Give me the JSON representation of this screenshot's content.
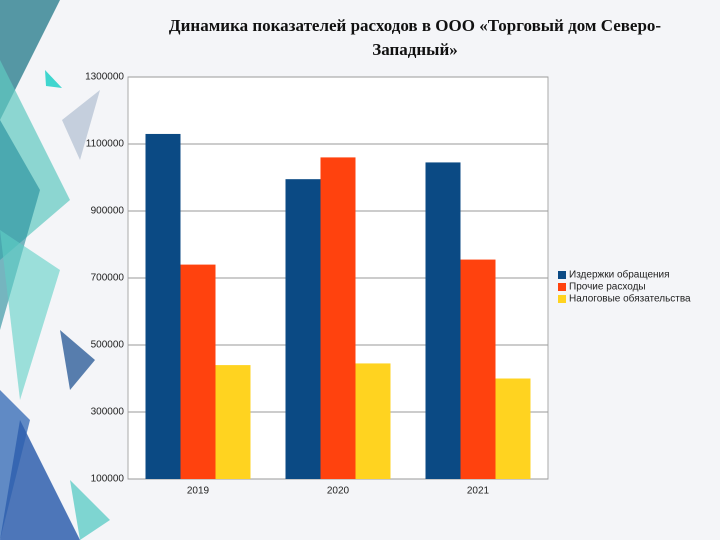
{
  "chart_data": {
    "type": "bar",
    "title": "Динамика показателей расходов в ООО «Торговый дом Северо-Западный»",
    "categories": [
      "2019",
      "2020",
      "2021"
    ],
    "series": [
      {
        "name": "Издержки обращения",
        "color": "#0b4a84",
        "values": [
          1130000,
          995000,
          1045000
        ]
      },
      {
        "name": "Прочие расходы",
        "color": "#ff420e",
        "values": [
          740000,
          1060000,
          755000
        ]
      },
      {
        "name": "Налоговые обязательства",
        "color": "#ffd320",
        "values": [
          440000,
          445000,
          400000
        ]
      }
    ],
    "ylim": [
      100000,
      1300000
    ],
    "yticks": [
      100000,
      300000,
      500000,
      700000,
      900000,
      1100000,
      1300000
    ],
    "grid": true,
    "legend": "right"
  }
}
